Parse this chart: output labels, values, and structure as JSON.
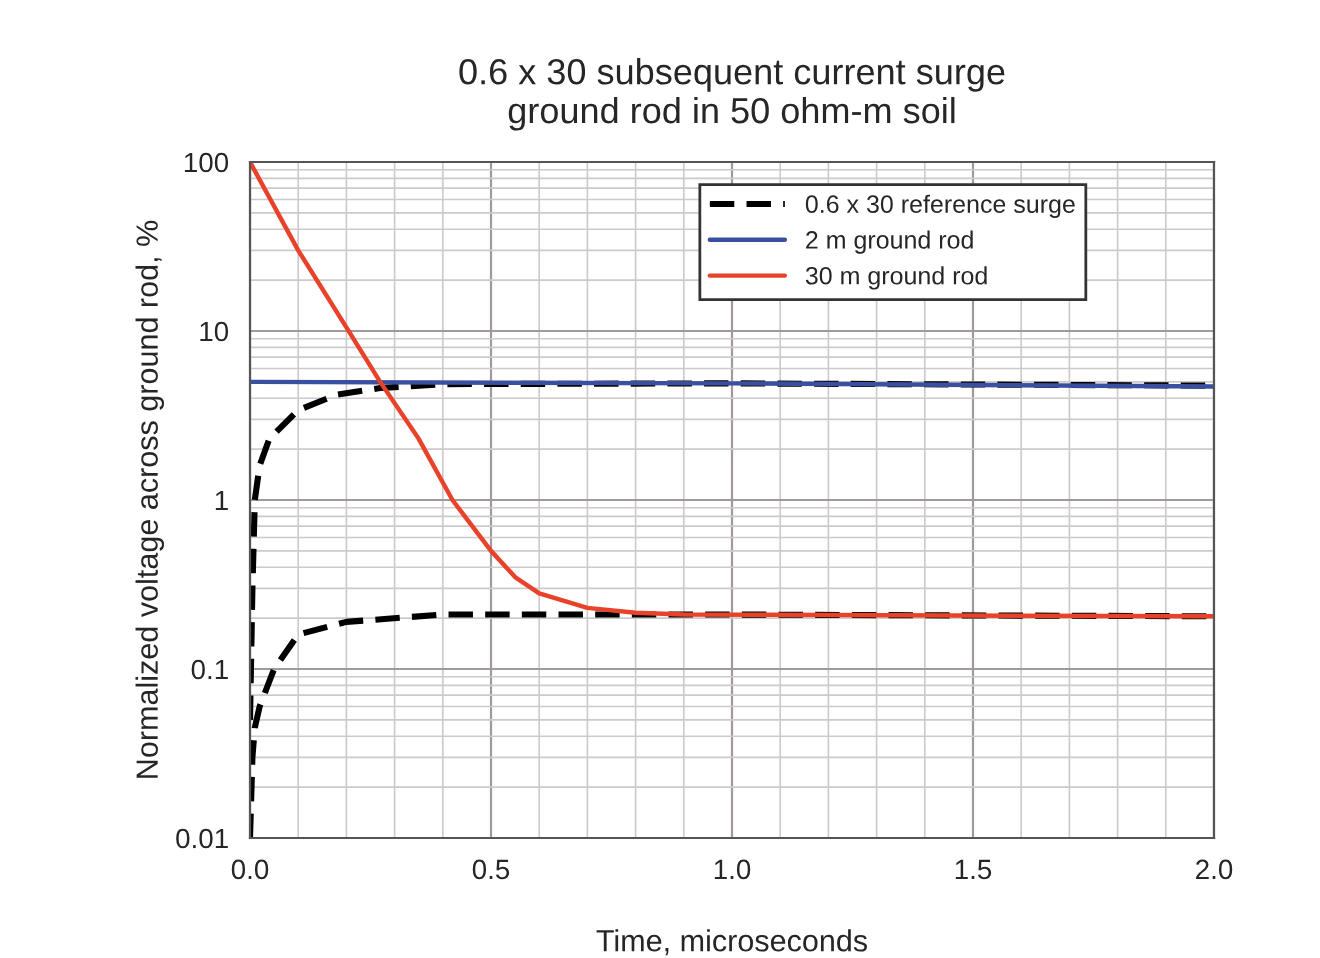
{
  "chart_data": {
    "type": "line",
    "title": "0.6 x 30 subsequent current surge\nground rod in 50 ohm-m soil",
    "xlabel": "Time, microseconds",
    "ylabel": "Normalized voltage across ground rod, %",
    "log": "y",
    "grid": true,
    "legend": "top right",
    "xlim": [
      0,
      2.0
    ],
    "xticks": [
      {
        "value": 0,
        "label": "0.0"
      },
      {
        "value": 0.5,
        "label": "0.5"
      },
      {
        "value": 1.0,
        "label": "1.0"
      },
      {
        "value": 1.5,
        "label": "1.5"
      },
      {
        "value": 2.0,
        "label": "2.0"
      }
    ],
    "ylim": [
      0.01,
      100
    ],
    "yticks": [
      0.01,
      0.1,
      1,
      10,
      100
    ],
    "series": [
      {
        "name": "0.6 x 30 reference surge",
        "color": "#000000",
        "line_style": "dashed",
        "x": [
          0,
          0.005,
          0.01,
          0.02,
          0.04,
          0.1,
          0.18,
          0.27,
          0.4,
          1.0,
          2.0
        ],
        "values": [
          0.05,
          0.3,
          1.0,
          1.6,
          2.3,
          3.4,
          4.2,
          4.6,
          4.85,
          4.9,
          4.75
        ]
      },
      {
        "color": "#000000",
        "line_style": "dashed",
        "x": [
          0,
          0.005,
          0.01,
          0.02,
          0.05,
          0.1,
          0.2,
          0.4,
          1.0,
          2.0
        ],
        "values": [
          0.01,
          0.03,
          0.045,
          0.06,
          0.1,
          0.16,
          0.19,
          0.21,
          0.21,
          0.205
        ]
      },
      {
        "name": "2 m ground rod",
        "color": "#3a4fa0",
        "line_style": "solid",
        "x": [
          0,
          1.0,
          2.0
        ],
        "values": [
          5.0,
          4.9,
          4.7
        ]
      },
      {
        "name": "30 m ground rod",
        "color": "#e8432a",
        "line_style": "solid",
        "x": [
          0,
          0.1,
          0.2,
          0.27,
          0.35,
          0.42,
          0.5,
          0.55,
          0.6,
          0.7,
          0.8,
          0.9,
          2.0
        ],
        "values": [
          100,
          30,
          10.5,
          5,
          2.3,
          1.0,
          0.5,
          0.35,
          0.28,
          0.23,
          0.215,
          0.21,
          0.205
        ]
      }
    ]
  }
}
